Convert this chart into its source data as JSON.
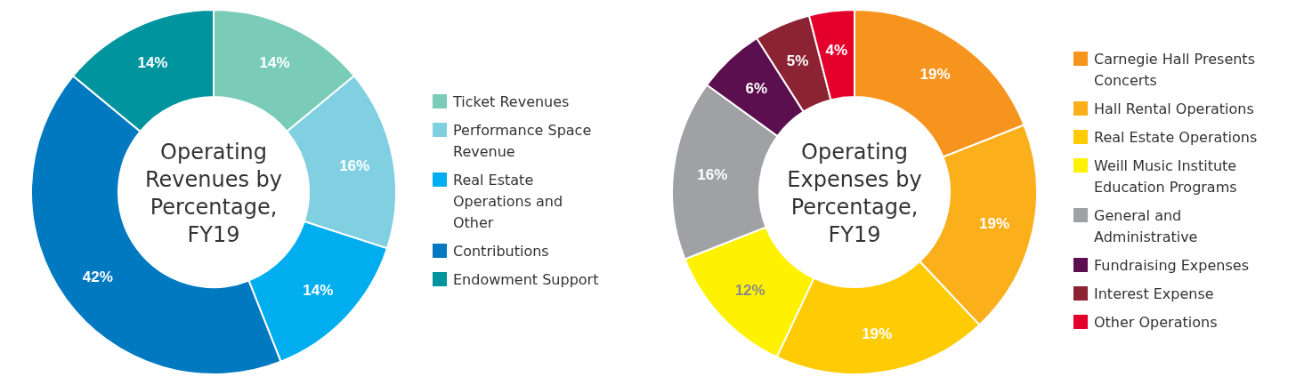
{
  "chart_data": [
    {
      "type": "donut",
      "title": "Operating Revenues by Percentage, FY19",
      "categories": [
        "Ticket Revenues",
        "Performance Space Revenue",
        "Real Estate Operations and Other",
        "Contributions",
        "Endowment Support"
      ],
      "values": [
        14,
        16,
        14,
        42,
        14
      ],
      "colors": [
        "#7accb8",
        "#80d0e2",
        "#00aeef",
        "#0079c1",
        "#00949e"
      ],
      "value_labels": [
        "14%",
        "16%",
        "14%",
        "42%",
        "14%"
      ],
      "legend": "right"
    },
    {
      "type": "donut",
      "title": "Operating Expenses by Percentage, FY19",
      "categories": [
        "Carnegie Hall Presents Concerts",
        "Hall Rental Operations",
        "Real Estate Operations",
        "Weill Music Institute Education Programs",
        "General and Administrative",
        "Fundraising Expenses",
        "Interest Expense",
        "Other Operations"
      ],
      "values": [
        19,
        19,
        19,
        12,
        16,
        6,
        5,
        4
      ],
      "colors": [
        "#f7941d",
        "#fbb01b",
        "#ffcb05",
        "#fff200",
        "#a0a1a5",
        "#5b0f4e",
        "#8b2332",
        "#e4002b"
      ],
      "value_labels": [
        "19%",
        "19%",
        "19%",
        "12%",
        "16%",
        "6%",
        "5%",
        "4%"
      ],
      "legend": "right"
    }
  ]
}
